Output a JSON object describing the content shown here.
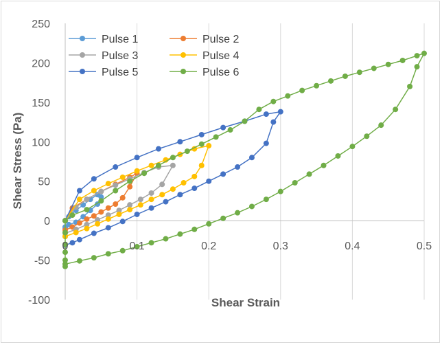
{
  "chart_data": {
    "type": "scatter",
    "title": "",
    "xlabel": "Shear Strain",
    "ylabel": "Shear Stress (Pa)",
    "xlim": [
      0,
      0.5
    ],
    "ylim": [
      -100,
      250
    ],
    "xticks": [
      0,
      0.1,
      0.2,
      0.3,
      0.4,
      0.5
    ],
    "xtick_labels": [
      "0",
      "0.1",
      "0.2",
      "0.3",
      "0.4",
      "0.5"
    ],
    "yticks": [
      -100,
      -50,
      0,
      50,
      100,
      150,
      200,
      250
    ],
    "ytick_labels": [
      "-100",
      "-50",
      "0",
      "50",
      "100",
      "150",
      "200",
      "250"
    ],
    "grid": "vertical",
    "legend": "top-left",
    "series": [
      {
        "name": "Pulse 1",
        "color": "#5b9bd5",
        "x": [
          0,
          0.005,
          0.015,
          0.025,
          0.035,
          0.045,
          0.05,
          0.045,
          0.035,
          0.025,
          0.015,
          0.005,
          0,
          0,
          0
        ],
        "y": [
          -8,
          -5,
          -2,
          5,
          13,
          21,
          30,
          33,
          27,
          20,
          13,
          5,
          0,
          -10,
          -20
        ]
      },
      {
        "name": "Pulse 2",
        "color": "#ed7d31",
        "x": [
          0,
          0.01,
          0.02,
          0.03,
          0.04,
          0.05,
          0.06,
          0.07,
          0.08,
          0.09,
          0.1,
          0.09,
          0.07,
          0.05,
          0.03,
          0.01,
          0
        ],
        "y": [
          -12,
          -8,
          -3,
          2,
          6,
          11,
          16,
          21,
          29,
          43,
          60,
          55,
          46,
          37,
          27,
          16,
          0
        ]
      },
      {
        "name": "Pulse 3",
        "color": "#a5a5a5",
        "x": [
          0,
          0.015,
          0.03,
          0.045,
          0.06,
          0.075,
          0.09,
          0.105,
          0.12,
          0.135,
          0.15,
          0.13,
          0.11,
          0.09,
          0.07,
          0.05,
          0.03,
          0.015,
          0
        ],
        "y": [
          -16,
          -11,
          -5,
          1,
          7,
          13,
          20,
          27,
          35,
          46,
          70,
          68,
          61,
          53,
          45,
          37,
          27,
          17,
          0
        ]
      },
      {
        "name": "Pulse 4",
        "color": "#ffc000",
        "x": [
          0,
          0.015,
          0.03,
          0.045,
          0.06,
          0.075,
          0.09,
          0.105,
          0.12,
          0.135,
          0.15,
          0.165,
          0.18,
          0.19,
          0.2,
          0.18,
          0.16,
          0.14,
          0.12,
          0.1,
          0.08,
          0.06,
          0.04,
          0.02,
          0
        ],
        "y": [
          -20,
          -15,
          -10,
          -4,
          2,
          8,
          14,
          20,
          27,
          33,
          40,
          48,
          56,
          70,
          95,
          91,
          84,
          77,
          70,
          63,
          55,
          47,
          38,
          27,
          0
        ]
      },
      {
        "name": "Pulse 5",
        "color": "#4472c4",
        "x": [
          0,
          0.01,
          0.02,
          0.04,
          0.06,
          0.08,
          0.1,
          0.12,
          0.14,
          0.16,
          0.18,
          0.2,
          0.22,
          0.24,
          0.26,
          0.28,
          0.29,
          0.3,
          0.28,
          0.25,
          0.22,
          0.19,
          0.16,
          0.13,
          0.1,
          0.07,
          0.04,
          0.02,
          0
        ],
        "y": [
          -31,
          -28,
          -24,
          -16,
          -9,
          -1,
          8,
          16,
          24,
          33,
          41,
          50,
          59,
          68,
          80,
          98,
          125,
          138,
          135,
          126,
          118,
          109,
          100,
          91,
          80,
          68,
          53,
          38,
          0
        ]
      },
      {
        "name": "Pulse 6",
        "color": "#70ad47",
        "x": [
          0,
          0.02,
          0.04,
          0.06,
          0.08,
          0.1,
          0.12,
          0.14,
          0.16,
          0.18,
          0.2,
          0.22,
          0.24,
          0.26,
          0.28,
          0.3,
          0.32,
          0.34,
          0.36,
          0.38,
          0.4,
          0.42,
          0.44,
          0.46,
          0.48,
          0.49,
          0.5,
          0.49,
          0.47,
          0.45,
          0.43,
          0.41,
          0.39,
          0.37,
          0.35,
          0.33,
          0.31,
          0.29,
          0.27,
          0.25,
          0.23,
          0.21,
          0.19,
          0.17,
          0.15,
          0.13,
          0.11,
          0.09,
          0.07,
          0.05,
          0.03,
          0.01,
          0,
          0,
          0,
          0,
          0,
          0
        ],
        "y": [
          -55,
          -51,
          -47,
          -42,
          -38,
          -33,
          -28,
          -23,
          -17,
          -11,
          -4,
          3,
          10,
          18,
          27,
          37,
          48,
          59,
          70,
          82,
          94,
          107,
          121,
          141,
          170,
          195,
          212,
          209,
          203,
          198,
          193,
          188,
          183,
          177,
          171,
          165,
          158,
          151,
          141,
          126,
          115,
          106,
          97,
          88,
          80,
          70,
          60,
          50,
          38,
          25,
          14,
          7,
          0,
          -15,
          -30,
          -40,
          -50,
          -58
        ]
      }
    ]
  }
}
